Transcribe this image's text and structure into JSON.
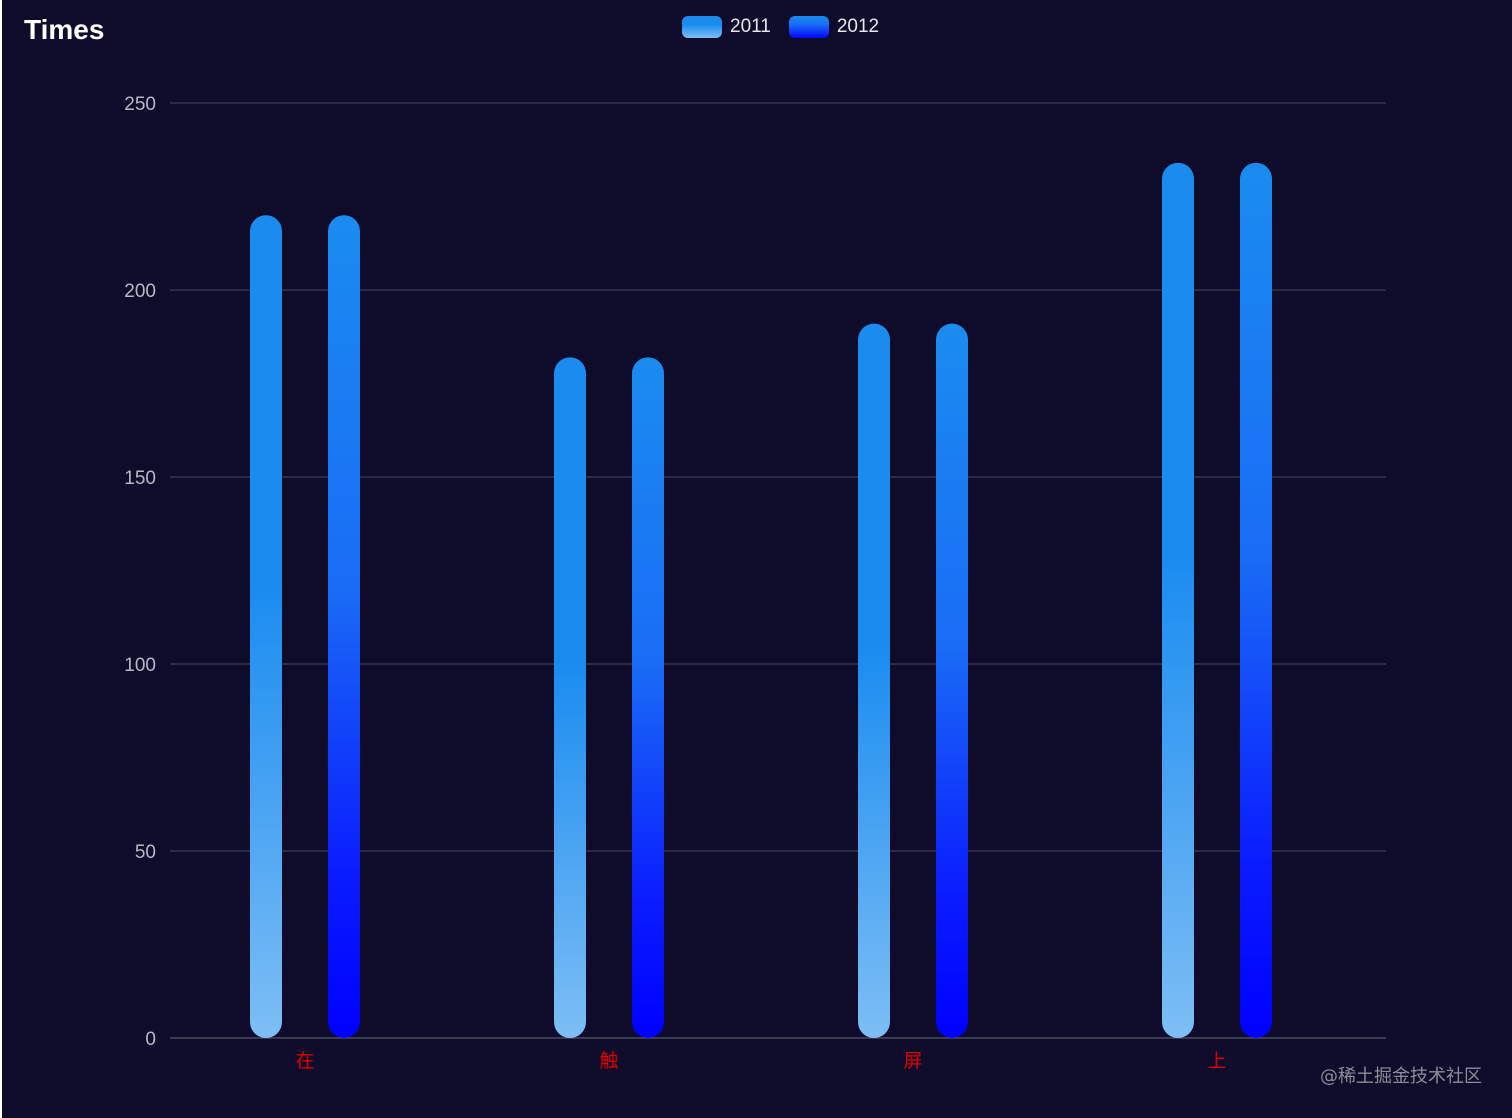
{
  "chart_data": {
    "type": "bar",
    "title": "Times",
    "categories": [
      "在",
      "触",
      "屏",
      "上"
    ],
    "series": [
      {
        "name": "2011",
        "values": [
          220,
          182,
          191,
          234
        ]
      },
      {
        "name": "2012",
        "values": [
          220,
          182,
          191,
          234
        ]
      }
    ],
    "yticks": [
      "0",
      "50",
      "100",
      "150",
      "200",
      "250"
    ],
    "ylim": [
      0,
      250
    ],
    "grid": true,
    "legend_position": "top-center",
    "colors": {
      "background": "#0f0b2a",
      "series_2011_top": "#1a8cf0",
      "series_2011_bottom": "#7dbef5",
      "series_2012_top": "#1a8cf0",
      "series_2012_bottom": "#0505ff",
      "category_label": "#e00000"
    }
  },
  "watermark": "@稀土掘金技术社区"
}
